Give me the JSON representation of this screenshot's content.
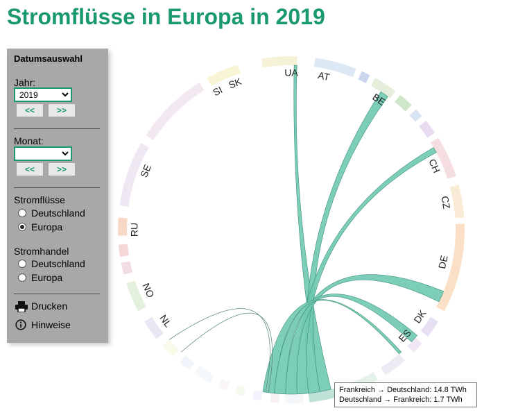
{
  "page": {
    "title": "Stromflüsse in Europa in 2019"
  },
  "panel": {
    "heading": "Datumsauswahl",
    "year_label": "Jahr:",
    "year_value": "2019",
    "month_label": "Monat:",
    "month_value": "",
    "prev_label": "<<",
    "next_label": ">>",
    "flows_heading": "Stromflüsse",
    "flows_options": [
      "Deutschland",
      "Europa"
    ],
    "flows_selected": "Europa",
    "trade_heading": "Stromhandel",
    "trade_options": [
      "Deutschland",
      "Europa"
    ],
    "trade_selected": "",
    "print_label": "Drucken",
    "print_icon": "printer-icon",
    "info_label": "Hinweise",
    "info_icon": "info-icon"
  },
  "tooltip": {
    "line1": "Frankreich → Deutschland: 14.8 TWh",
    "line2": "Deutschland → Frankreich: 1.7 TWh"
  },
  "colors": {
    "accent": "#1a9970",
    "ribbon": "#6fc9b0",
    "panel": "#a8a8a8"
  },
  "chart_data": {
    "type": "chord",
    "title": "Stromflüsse in Europa in 2019",
    "focus_country": "FR",
    "country_labels": [
      "UA",
      "AT",
      "BE",
      "CH",
      "CZ",
      "DE",
      "DK",
      "ES",
      "SK",
      "SI",
      "SE",
      "RU",
      "NO",
      "NL"
    ],
    "highlighted_flows": [
      {
        "from": "FR",
        "to": "DE",
        "value_twh": 14.8
      },
      {
        "from": "DE",
        "to": "FR",
        "value_twh": 1.7
      }
    ],
    "unit": "TWh"
  }
}
